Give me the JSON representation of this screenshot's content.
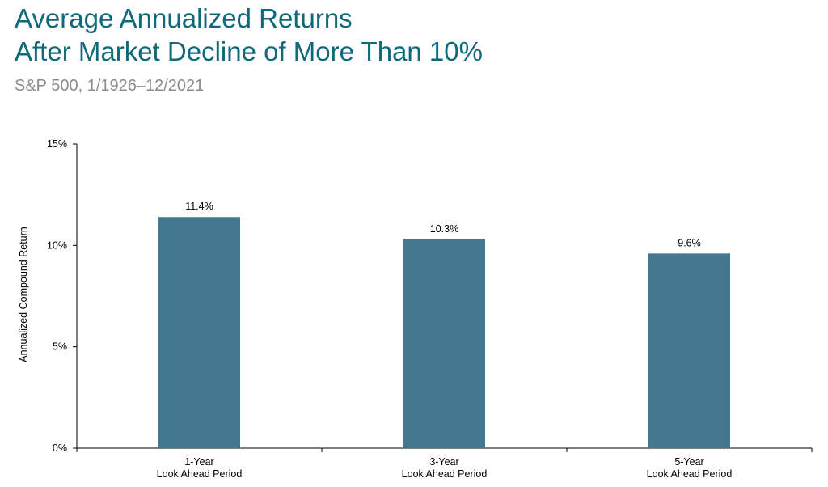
{
  "header": {
    "title_line1": "Average Annualized Returns",
    "title_line2": "After Market Decline of More Than 10%",
    "subtitle": "S&P 500, 1/1926–12/2021"
  },
  "chart_data": {
    "type": "bar",
    "categories": [
      [
        "1-Year",
        "Look Ahead Period"
      ],
      [
        "3-Year",
        "Look Ahead Period"
      ],
      [
        "5-Year",
        "Look Ahead Period"
      ]
    ],
    "values": [
      11.4,
      10.3,
      9.6
    ],
    "value_labels": [
      "11.4%",
      "10.3%",
      "9.6%"
    ],
    "ylabel": "Annualized Compound Return",
    "ylim": [
      0,
      15
    ],
    "yticks": [
      0,
      5,
      10,
      15
    ],
    "ytick_labels": [
      "0%",
      "5%",
      "10%",
      "15%"
    ],
    "bar_color": "#43788f",
    "grid": false,
    "legend": "none"
  }
}
